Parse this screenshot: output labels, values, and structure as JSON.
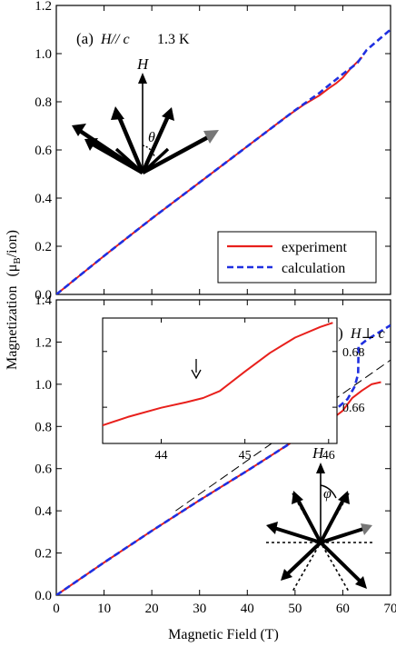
{
  "figure": {
    "xlabel": "Magnetic Field (T)",
    "ylabel_main": "Magnetization",
    "ylabel_unit": "(μ",
    "ylabel_sub": "B",
    "ylabel_tail": "/ion)"
  },
  "colors": {
    "experiment": "#e8201c",
    "calculation": "#1f2fe0",
    "dashed_line": "#000000",
    "inset_curve": "#e8201c"
  },
  "chart_data": [
    {
      "type": "line",
      "panel_label": "(a)",
      "condition_label": "H// c",
      "temperature_label": "1.3 K",
      "xlim": [
        0,
        70
      ],
      "ylim": [
        0,
        1.2
      ],
      "xticks": [
        0,
        10,
        20,
        30,
        40,
        50,
        60,
        70
      ],
      "yticks": [
        "0.0",
        "0.2",
        "0.4",
        "0.6",
        "0.8",
        "1.0",
        "1.2"
      ],
      "legend": {
        "placement": "bottom-right",
        "entries": [
          "experiment",
          "calculation"
        ]
      },
      "series": [
        {
          "name": "experiment",
          "style": "solid",
          "x": [
            0,
            10,
            20,
            30,
            40,
            48,
            52,
            55,
            57,
            58.5,
            60,
            61.5,
            63,
            64
          ],
          "y": [
            0,
            0.16,
            0.315,
            0.465,
            0.615,
            0.735,
            0.79,
            0.825,
            0.855,
            0.875,
            0.9,
            0.935,
            0.965,
            0.985
          ]
        },
        {
          "name": "calculation",
          "style": "dashed",
          "x": [
            0,
            10,
            20,
            30,
            40,
            50,
            55,
            60,
            63,
            65,
            70
          ],
          "y": [
            0,
            0.16,
            0.315,
            0.465,
            0.615,
            0.765,
            0.835,
            0.915,
            0.96,
            1.015,
            1.1
          ]
        }
      ],
      "diagram": {
        "field_label": "H",
        "angle_label": "θ"
      }
    },
    {
      "type": "line",
      "panel_label": "(b)",
      "condition_label": "H⊥ c",
      "xlim": [
        0,
        70
      ],
      "ylim": [
        0,
        1.4
      ],
      "xticks": [
        0,
        10,
        20,
        30,
        40,
        50,
        60,
        70
      ],
      "yticks": [
        "0.0",
        "0.2",
        "0.4",
        "0.6",
        "0.8",
        "1.0",
        "1.2",
        "1.4"
      ],
      "series": [
        {
          "name": "experiment",
          "style": "solid",
          "x": [
            0,
            10,
            20,
            30,
            40,
            50,
            55,
            58,
            60,
            62,
            64,
            66,
            68
          ],
          "y": [
            0,
            0.155,
            0.305,
            0.45,
            0.59,
            0.735,
            0.8,
            0.84,
            0.875,
            0.935,
            0.97,
            1.0,
            1.01
          ]
        },
        {
          "name": "calculation",
          "style": "dashed",
          "x": [
            0,
            10,
            20,
            30,
            40,
            50,
            55,
            58,
            61,
            62.5,
            63.2,
            63.3,
            65,
            70
          ],
          "y": [
            0,
            0.155,
            0.305,
            0.45,
            0.59,
            0.735,
            0.81,
            0.87,
            0.93,
            0.99,
            1.05,
            1.18,
            1.21,
            1.28
          ]
        },
        {
          "name": "linear guide",
          "style": "long-dash",
          "x": [
            25,
            70
          ],
          "y": [
            0.4,
            1.115
          ]
        }
      ],
      "inset": {
        "type": "line",
        "xlim": [
          43.3,
          46.1
        ],
        "ylim": [
          0.647,
          0.692
        ],
        "xticks": [
          "44",
          "45",
          "46"
        ],
        "yticks": [
          "0.66",
          "0.68"
        ],
        "arrow_at_x": 44.5,
        "series": [
          {
            "name": "experiment",
            "x": [
              43.3,
              43.6,
              44.0,
              44.3,
              44.5,
              44.7,
              45.0,
              45.3,
              45.6,
              45.9,
              46.05
            ],
            "y": [
              0.6535,
              0.6565,
              0.6598,
              0.6618,
              0.6633,
              0.6658,
              0.6728,
              0.6795,
              0.685,
              0.6888,
              0.6903
            ]
          }
        ]
      },
      "diagram": {
        "field_label": "H",
        "angle_label": "φ"
      }
    }
  ]
}
